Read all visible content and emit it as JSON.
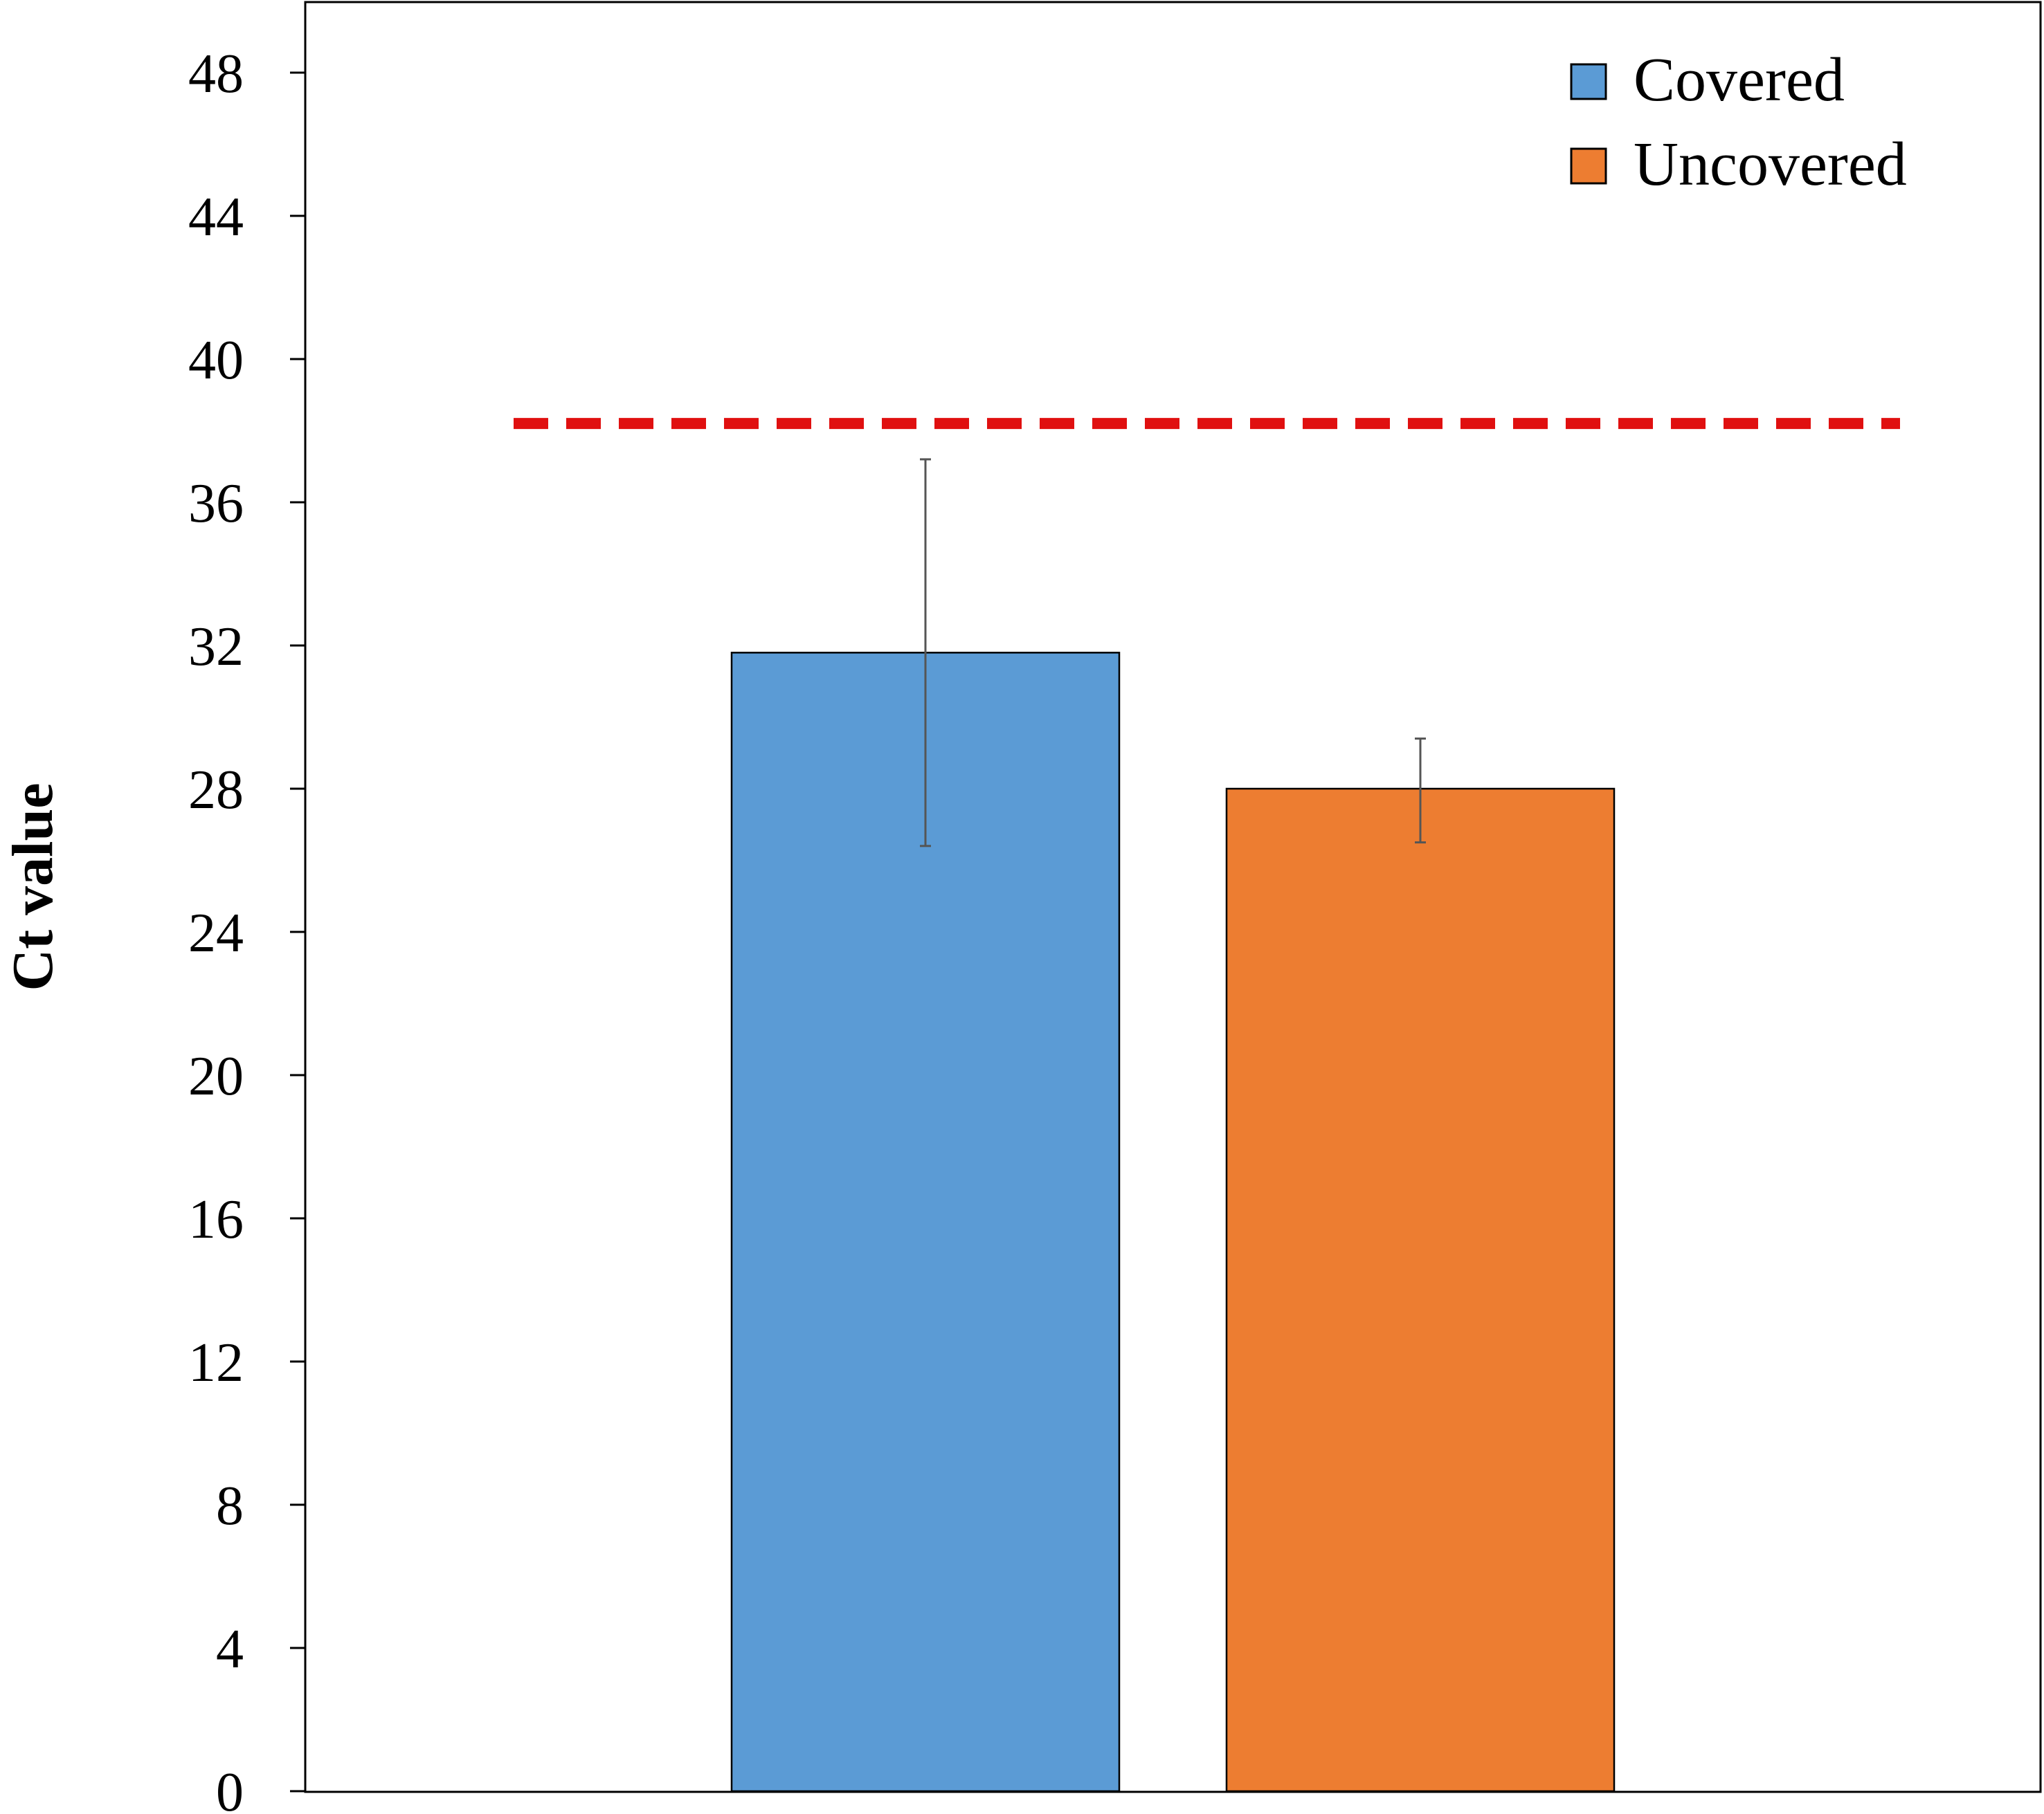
{
  "chart_data": {
    "type": "bar",
    "title": "",
    "xlabel": "",
    "ylabel": "Ct value",
    "ylim": [
      0,
      50
    ],
    "yticks": [
      0,
      4,
      8,
      12,
      16,
      20,
      24,
      28,
      32,
      36,
      40,
      44,
      48
    ],
    "grid": false,
    "legend_position": "top-right",
    "series": [
      {
        "name": "Covered",
        "value": 31.8,
        "error_low": 26.4,
        "error_high": 37.2,
        "color": "#5B9BD5"
      },
      {
        "name": "Uncovered",
        "value": 28.0,
        "error_low": 26.5,
        "error_high": 29.4,
        "color": "#ED7D31"
      }
    ],
    "threshold": {
      "value": 38.2,
      "color": "#E01010",
      "style": "dashed"
    }
  }
}
